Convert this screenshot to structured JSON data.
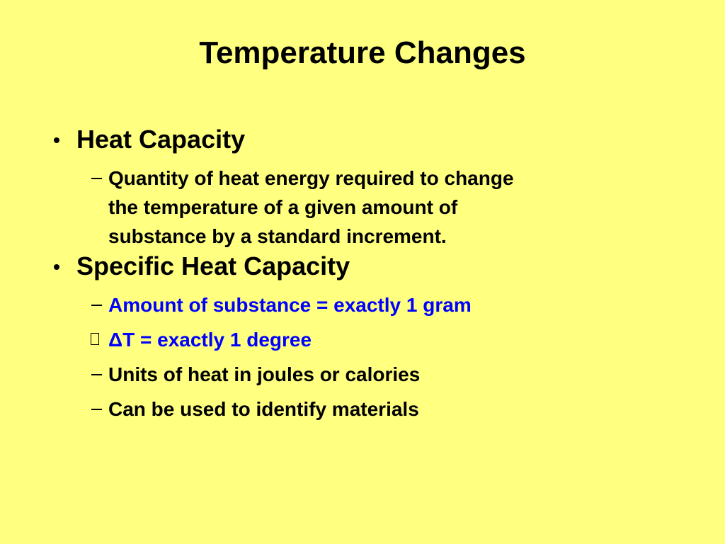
{
  "title": "Temperature Changes",
  "bullets": [
    {
      "text": "Heat Capacity",
      "subitems": [
        {
          "text": "Quantity of heat energy required to change the temperature of a given amount of substance by a standard increment.",
          "color": "#000000",
          "marker": "dash"
        }
      ]
    },
    {
      "text": "Specific Heat Capacity",
      "subitems": [
        {
          "text": "Amount of substance = exactly 1 gram",
          "color": "#0000ff",
          "marker": "dash"
        },
        {
          "text": "ΔT = exactly 1 degree",
          "color": "#0000ff",
          "marker": "box"
        },
        {
          "text": "Units of heat in joules or calories",
          "color": "#000000",
          "marker": "dash"
        },
        {
          "text": "Can be used to identify materials",
          "color": "#000000",
          "marker": "dash"
        }
      ]
    }
  ]
}
